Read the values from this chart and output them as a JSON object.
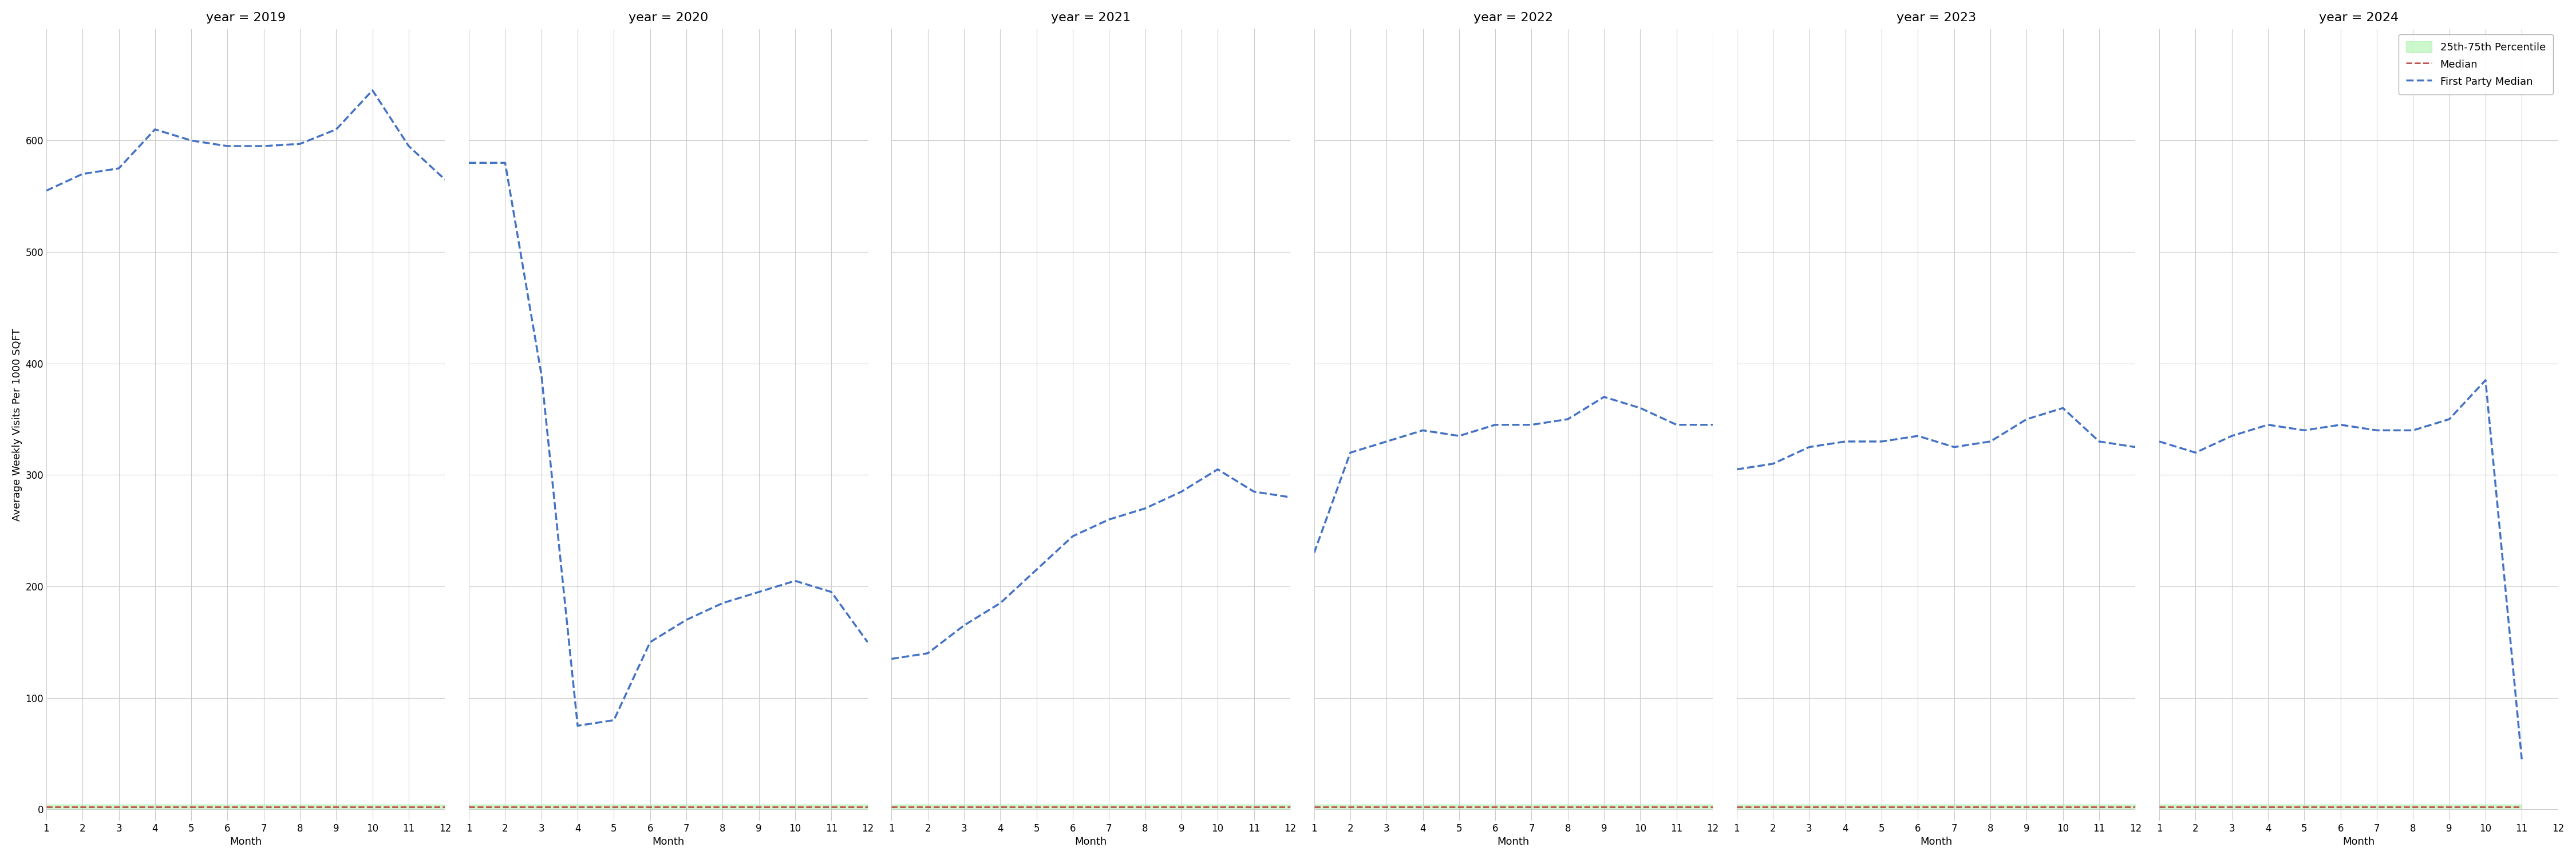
{
  "years": [
    2019,
    2020,
    2021,
    2022,
    2023,
    2024
  ],
  "months": [
    1,
    2,
    3,
    4,
    5,
    6,
    7,
    8,
    9,
    10,
    11,
    12
  ],
  "first_party_median": {
    "2019": [
      555,
      570,
      575,
      610,
      600,
      595,
      595,
      597,
      610,
      645,
      595,
      565
    ],
    "2020": [
      580,
      580,
      390,
      75,
      80,
      150,
      170,
      185,
      195,
      205,
      195,
      150
    ],
    "2021": [
      135,
      140,
      165,
      185,
      215,
      245,
      260,
      270,
      285,
      305,
      285,
      280
    ],
    "2022": [
      230,
      320,
      330,
      340,
      335,
      345,
      345,
      350,
      370,
      360,
      345,
      345
    ],
    "2023": [
      305,
      310,
      325,
      330,
      330,
      335,
      325,
      330,
      350,
      360,
      330,
      325
    ],
    "2024": [
      330,
      320,
      335,
      345,
      340,
      345,
      340,
      340,
      350,
      385,
      45,
      null
    ]
  },
  "median": {
    "2019": [
      2,
      2,
      2,
      2,
      2,
      2,
      2,
      2,
      2,
      2,
      2,
      2
    ],
    "2020": [
      2,
      2,
      2,
      2,
      2,
      2,
      2,
      2,
      2,
      2,
      2,
      2
    ],
    "2021": [
      2,
      2,
      2,
      2,
      2,
      2,
      2,
      2,
      2,
      2,
      2,
      2
    ],
    "2022": [
      2,
      2,
      2,
      2,
      2,
      2,
      2,
      2,
      2,
      2,
      2,
      2
    ],
    "2023": [
      2,
      2,
      2,
      2,
      2,
      2,
      2,
      2,
      2,
      2,
      2,
      2
    ],
    "2024": [
      2,
      2,
      2,
      2,
      2,
      2,
      2,
      2,
      2,
      2,
      2,
      null
    ]
  },
  "percentile_25": {
    "2019": [
      1,
      1,
      1,
      1,
      1,
      1,
      1,
      1,
      1,
      1,
      1,
      1
    ],
    "2020": [
      1,
      1,
      1,
      1,
      1,
      1,
      1,
      1,
      1,
      1,
      1,
      1
    ],
    "2021": [
      1,
      1,
      1,
      1,
      1,
      1,
      1,
      1,
      1,
      1,
      1,
      1
    ],
    "2022": [
      1,
      1,
      1,
      1,
      1,
      1,
      1,
      1,
      1,
      1,
      1,
      1
    ],
    "2023": [
      1,
      1,
      1,
      1,
      1,
      1,
      1,
      1,
      1,
      1,
      1,
      1
    ],
    "2024": [
      1,
      1,
      1,
      1,
      1,
      1,
      1,
      1,
      1,
      1,
      1,
      null
    ]
  },
  "percentile_75": {
    "2019": [
      4,
      4,
      4,
      4,
      4,
      4,
      4,
      4,
      4,
      4,
      4,
      4
    ],
    "2020": [
      4,
      4,
      4,
      4,
      4,
      4,
      4,
      4,
      4,
      4,
      4,
      4
    ],
    "2021": [
      4,
      4,
      4,
      4,
      4,
      4,
      4,
      4,
      4,
      4,
      4,
      4
    ],
    "2022": [
      4,
      4,
      4,
      4,
      4,
      4,
      4,
      4,
      4,
      4,
      4,
      4
    ],
    "2023": [
      4,
      4,
      4,
      4,
      4,
      4,
      4,
      4,
      4,
      4,
      4,
      4
    ],
    "2024": [
      4,
      4,
      4,
      4,
      4,
      4,
      4,
      4,
      4,
      4,
      4,
      null
    ]
  },
  "ylim": [
    -10,
    700
  ],
  "yticks": [
    0,
    100,
    200,
    300,
    400,
    500,
    600
  ],
  "xticks": [
    1,
    2,
    3,
    4,
    5,
    6,
    7,
    8,
    9,
    10,
    11,
    12
  ],
  "ylabel": "Average Weekly Visits Per 1000 SQFT",
  "xlabel": "Month",
  "blue_color": "#4472C4",
  "red_color": "#C0504D",
  "fill_color": "#90EE90",
  "bg_color": "#FFFFFF",
  "grid_color": "#CCCCCC",
  "title_fontsize": 16,
  "axis_fontsize": 12,
  "label_fontsize": 13,
  "tick_fontsize": 12,
  "legend_fontsize": 13
}
